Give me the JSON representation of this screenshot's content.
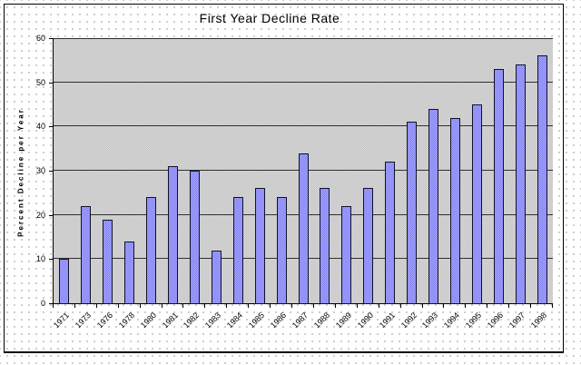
{
  "chart_data": {
    "type": "bar",
    "title": "First Year Decline Rate",
    "xlabel": "",
    "ylabel": "Percent Decline per Year",
    "categories": [
      "1971",
      "1973",
      "1976",
      "1978",
      "1980",
      "1981",
      "1982",
      "1983",
      "1984",
      "1985",
      "1986",
      "1987",
      "1988",
      "1989",
      "1990",
      "1991",
      "1992",
      "1993",
      "1994",
      "1995",
      "1996",
      "1997",
      "1998"
    ],
    "values": [
      10,
      22,
      19,
      14,
      24,
      31,
      30,
      12,
      24,
      26,
      24,
      34,
      26,
      22,
      26,
      32,
      41,
      44,
      42,
      45,
      53,
      54,
      56
    ],
    "ylim": [
      0,
      60
    ],
    "yticks": [
      0,
      10,
      20,
      30,
      40,
      50,
      60
    ],
    "grid": "horizontal",
    "legend_position": "none",
    "colors": {
      "bar_fill": "#9999ff",
      "bar_border": "#10102c",
      "plot_background": "#cecece",
      "gridline": "#303030",
      "chart_border": "#000000",
      "worksheet_dot": "#bdbdbd",
      "text": "#000000"
    }
  }
}
